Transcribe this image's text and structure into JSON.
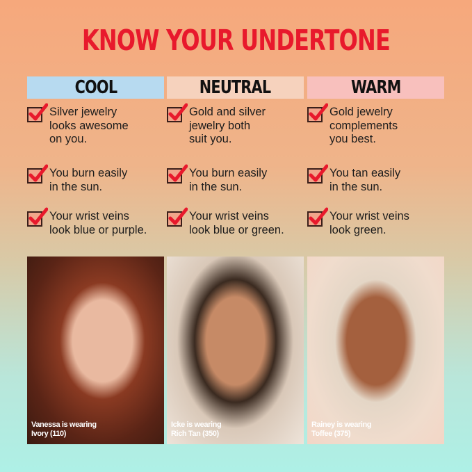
{
  "title": "KNOW YOUR UNDERTONE",
  "columns": [
    {
      "label": "COOL",
      "color": "#b7daf0",
      "items": [
        "Silver jewelry\nlooks awesome\non you.",
        "You burn easily\nin the sun.",
        "Your wrist veins\nlook blue or purple."
      ],
      "caption": [
        "Vanessa is wearing",
        "Ivory (110)"
      ]
    },
    {
      "label": "NEUTRAL",
      "color": "#f6d2bd",
      "items": [
        "Gold and silver\njewelry both\nsuit you.",
        "You burn easily\nin the sun.",
        "Your wrist veins\nlook blue or green."
      ],
      "caption": [
        "Icke is wearing",
        "Rich Tan (350)"
      ]
    },
    {
      "label": "WARM",
      "color": "#f8c0bd",
      "items": [
        "Gold jewelry\ncomplements\nyou best.",
        "You tan easily\nin the sun.",
        "Your wrist veins\nlook green."
      ],
      "caption": [
        "Rainey is wearing",
        "Toffee (375)"
      ]
    }
  ],
  "accent": "#e8192c"
}
